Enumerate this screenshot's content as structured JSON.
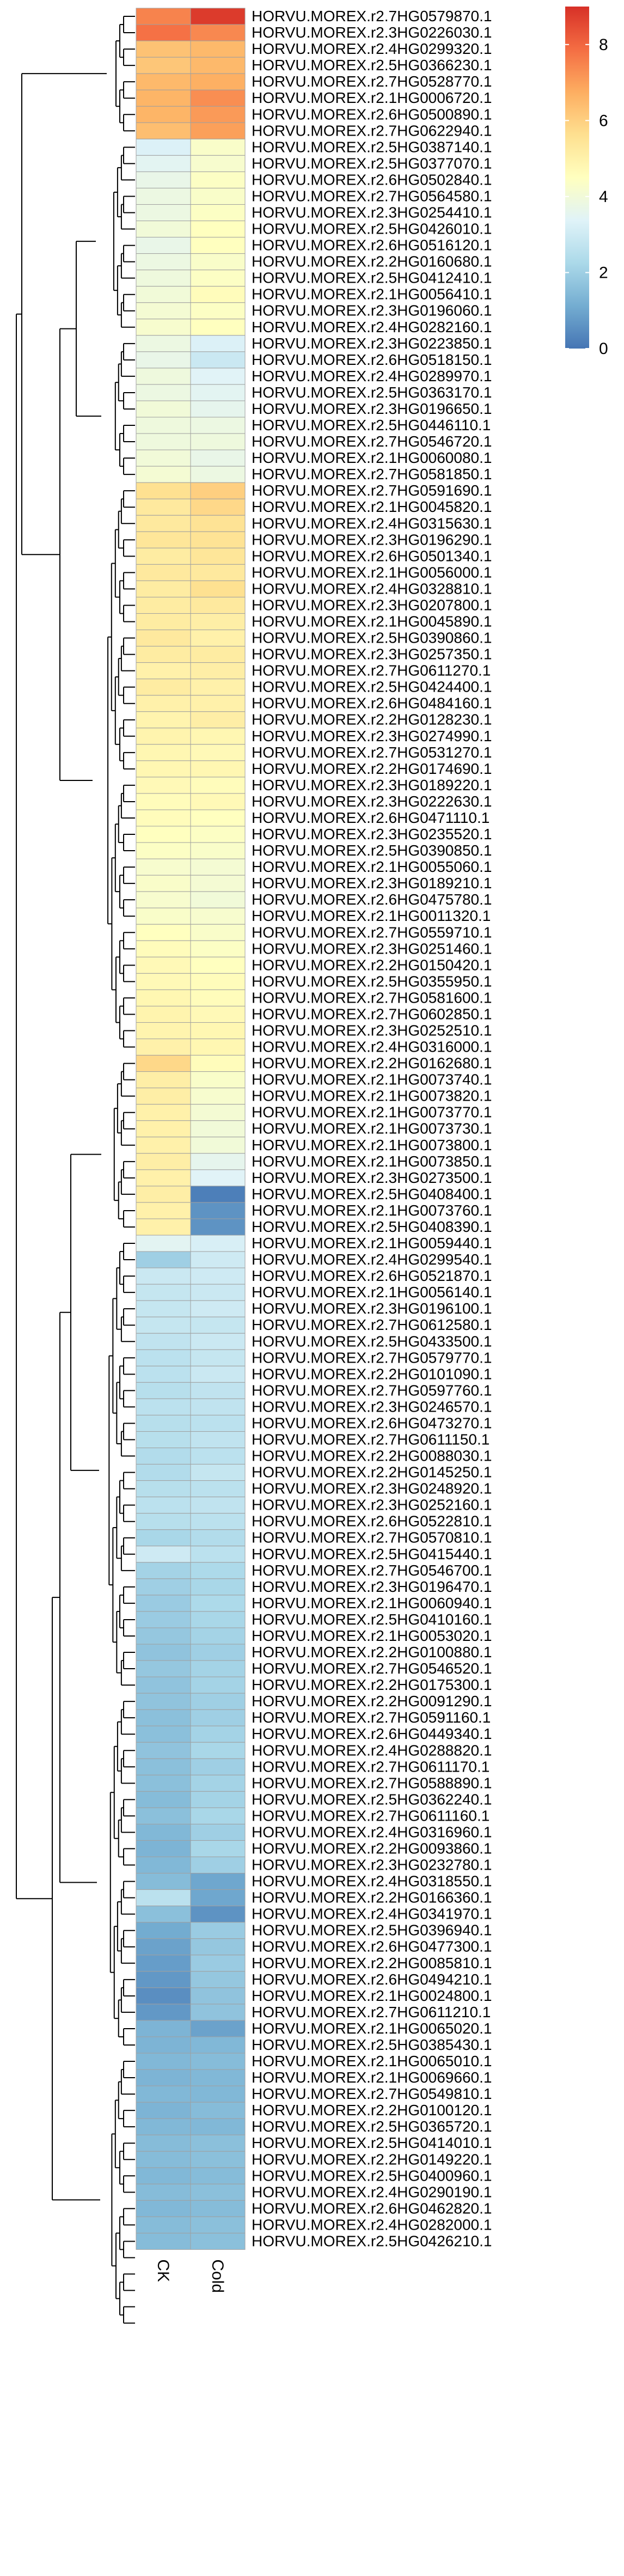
{
  "chart_data": {
    "type": "heatmap",
    "title": "",
    "columns": [
      "CK",
      "Cold"
    ],
    "color_scale": {
      "min": 0,
      "max": 9,
      "ticks": [
        0,
        2,
        4,
        6,
        8
      ],
      "colors": [
        "#4575b4",
        "#74add1",
        "#abd9e9",
        "#e0f3f8",
        "#ffffbf",
        "#fee090",
        "#fdae61",
        "#f46d43",
        "#d73027"
      ]
    },
    "rows": [
      {
        "gene": "HORVU.MOREX.r2.7HG0579870.1",
        "values": [
          7.5,
          8.8
        ]
      },
      {
        "gene": "HORVU.MOREX.r2.3HG0226030.1",
        "values": [
          7.8,
          7.4
        ]
      },
      {
        "gene": "HORVU.MOREX.r2.4HG0299320.1",
        "values": [
          6.3,
          6.5
        ]
      },
      {
        "gene": "HORVU.MOREX.r2.5HG0366230.1",
        "values": [
          6.2,
          6.5
        ]
      },
      {
        "gene": "HORVU.MOREX.r2.7HG0528770.1",
        "values": [
          6.5,
          6.7
        ]
      },
      {
        "gene": "HORVU.MOREX.r2.1HG0006720.1",
        "values": [
          6.6,
          7.3
        ]
      },
      {
        "gene": "HORVU.MOREX.r2.6HG0500890.1",
        "values": [
          6.6,
          7.1
        ]
      },
      {
        "gene": "HORVU.MOREX.r2.7HG0622940.1",
        "values": [
          6.4,
          7.0
        ]
      },
      {
        "gene": "HORVU.MOREX.r2.5HG0387140.1",
        "values": [
          3.3,
          4.3
        ]
      },
      {
        "gene": "HORVU.MOREX.r2.5HG0377070.1",
        "values": [
          3.5,
          4.2
        ]
      },
      {
        "gene": "HORVU.MOREX.r2.6HG0502840.1",
        "values": [
          3.7,
          4.4
        ]
      },
      {
        "gene": "HORVU.MOREX.r2.7HG0564580.1",
        "values": [
          3.8,
          4.3
        ]
      },
      {
        "gene": "HORVU.MOREX.r2.3HG0254410.1",
        "values": [
          3.8,
          4.4
        ]
      },
      {
        "gene": "HORVU.MOREX.r2.5HG0426010.1",
        "values": [
          4.0,
          4.5
        ]
      },
      {
        "gene": "HORVU.MOREX.r2.6HG0516120.1",
        "values": [
          3.7,
          4.5
        ]
      },
      {
        "gene": "HORVU.MOREX.r2.2HG0160680.1",
        "values": [
          3.8,
          4.3
        ]
      },
      {
        "gene": "HORVU.MOREX.r2.5HG0412410.1",
        "values": [
          3.9,
          4.4
        ]
      },
      {
        "gene": "HORVU.MOREX.r2.1HG0056410.1",
        "values": [
          4.0,
          4.6
        ]
      },
      {
        "gene": "HORVU.MOREX.r2.3HG0196060.1",
        "values": [
          4.1,
          4.4
        ]
      },
      {
        "gene": "HORVU.MOREX.r2.4HG0282160.1",
        "values": [
          4.2,
          4.5
        ]
      },
      {
        "gene": "HORVU.MOREX.r2.3HG0223850.1",
        "values": [
          3.8,
          3.3
        ]
      },
      {
        "gene": "HORVU.MOREX.r2.6HG0518150.1",
        "values": [
          3.7,
          2.9
        ]
      },
      {
        "gene": "HORVU.MOREX.r2.4HG0289970.1",
        "values": [
          3.9,
          3.4
        ]
      },
      {
        "gene": "HORVU.MOREX.r2.5HG0363170.1",
        "values": [
          3.8,
          3.5
        ]
      },
      {
        "gene": "HORVU.MOREX.r2.3HG0196650.1",
        "values": [
          4.0,
          3.6
        ]
      },
      {
        "gene": "HORVU.MOREX.r2.5HG0446110.1",
        "values": [
          3.9,
          3.8
        ]
      },
      {
        "gene": "HORVU.MOREX.r2.7HG0546720.1",
        "values": [
          3.9,
          3.9
        ]
      },
      {
        "gene": "HORVU.MOREX.r2.1HG0060080.1",
        "values": [
          4.0,
          3.7
        ]
      },
      {
        "gene": "HORVU.MOREX.r2.7HG0581850.1",
        "values": [
          4.1,
          3.8
        ]
      },
      {
        "gene": "HORVU.MOREX.r2.7HG0591690.1",
        "values": [
          5.6,
          6.0
        ]
      },
      {
        "gene": "HORVU.MOREX.r2.1HG0045820.1",
        "values": [
          5.3,
          5.8
        ]
      },
      {
        "gene": "HORVU.MOREX.r2.4HG0315630.1",
        "values": [
          5.3,
          5.5
        ]
      },
      {
        "gene": "HORVU.MOREX.r2.3HG0196290.1",
        "values": [
          5.4,
          5.5
        ]
      },
      {
        "gene": "HORVU.MOREX.r2.6HG0501340.1",
        "values": [
          5.2,
          5.4
        ]
      },
      {
        "gene": "HORVU.MOREX.r2.1HG0056000.1",
        "values": [
          5.3,
          5.3
        ]
      },
      {
        "gene": "HORVU.MOREX.r2.4HG0328810.1",
        "values": [
          5.2,
          5.6
        ]
      },
      {
        "gene": "HORVU.MOREX.r2.3HG0207800.1",
        "values": [
          5.2,
          5.3
        ]
      },
      {
        "gene": "HORVU.MOREX.r2.1HG0045890.1",
        "values": [
          5.2,
          5.1
        ]
      },
      {
        "gene": "HORVU.MOREX.r2.5HG0390860.1",
        "values": [
          5.3,
          5.0
        ]
      },
      {
        "gene": "HORVU.MOREX.r2.3HG0257350.1",
        "values": [
          5.2,
          5.2
        ]
      },
      {
        "gene": "HORVU.MOREX.r2.7HG0611270.1",
        "values": [
          5.0,
          5.1
        ]
      },
      {
        "gene": "HORVU.MOREX.r2.5HG0424400.1",
        "values": [
          5.2,
          5.0
        ]
      },
      {
        "gene": "HORVU.MOREX.r2.6HG0484160.1",
        "values": [
          5.0,
          5.0
        ]
      },
      {
        "gene": "HORVU.MOREX.r2.2HG0128230.1",
        "values": [
          4.9,
          5.1
        ]
      },
      {
        "gene": "HORVU.MOREX.r2.3HG0274990.1",
        "values": [
          4.9,
          4.8
        ]
      },
      {
        "gene": "HORVU.MOREX.r2.7HG0531270.1",
        "values": [
          4.8,
          4.7
        ]
      },
      {
        "gene": "HORVU.MOREX.r2.2HG0174690.1",
        "values": [
          4.8,
          4.8
        ]
      },
      {
        "gene": "HORVU.MOREX.r2.3HG0189220.1",
        "values": [
          4.7,
          4.6
        ]
      },
      {
        "gene": "HORVU.MOREX.r2.3HG0222630.1",
        "values": [
          4.6,
          4.7
        ]
      },
      {
        "gene": "HORVU.MOREX.r2.6HG0471110.1",
        "values": [
          4.6,
          4.5
        ]
      },
      {
        "gene": "HORVU.MOREX.r2.3HG0235520.1",
        "values": [
          4.5,
          4.4
        ]
      },
      {
        "gene": "HORVU.MOREX.r2.5HG0390850.1",
        "values": [
          4.4,
          4.3
        ]
      },
      {
        "gene": "HORVU.MOREX.r2.1HG0055060.1",
        "values": [
          4.2,
          4.1
        ]
      },
      {
        "gene": "HORVU.MOREX.r2.3HG0189210.1",
        "values": [
          4.3,
          4.1
        ]
      },
      {
        "gene": "HORVU.MOREX.r2.6HG0475780.1",
        "values": [
          4.2,
          4.0
        ]
      },
      {
        "gene": "HORVU.MOREX.r2.1HG0011320.1",
        "values": [
          4.3,
          4.2
        ]
      },
      {
        "gene": "HORVU.MOREX.r2.7HG0559710.1",
        "values": [
          4.5,
          4.3
        ]
      },
      {
        "gene": "HORVU.MOREX.r2.3HG0251460.1",
        "values": [
          4.6,
          4.4
        ]
      },
      {
        "gene": "HORVU.MOREX.r2.2HG0150420.1",
        "values": [
          4.7,
          4.5
        ]
      },
      {
        "gene": "HORVU.MOREX.r2.5HG0355950.1",
        "values": [
          4.7,
          4.6
        ]
      },
      {
        "gene": "HORVU.MOREX.r2.7HG0581600.1",
        "values": [
          4.8,
          4.6
        ]
      },
      {
        "gene": "HORVU.MOREX.r2.7HG0602850.1",
        "values": [
          4.9,
          4.7
        ]
      },
      {
        "gene": "HORVU.MOREX.r2.3HG0252510.1",
        "values": [
          4.9,
          4.8
        ]
      },
      {
        "gene": "HORVU.MOREX.r2.4HG0316000.1",
        "values": [
          5.0,
          4.8
        ]
      },
      {
        "gene": "HORVU.MOREX.r2.2HG0162680.1",
        "values": [
          5.8,
          4.6
        ]
      },
      {
        "gene": "HORVU.MOREX.r2.1HG0073740.1",
        "values": [
          5.1,
          4.3
        ]
      },
      {
        "gene": "HORVU.MOREX.r2.1HG0073820.1",
        "values": [
          5.1,
          4.2
        ]
      },
      {
        "gene": "HORVU.MOREX.r2.1HG0073770.1",
        "values": [
          5.0,
          4.1
        ]
      },
      {
        "gene": "HORVU.MOREX.r2.1HG0073730.1",
        "values": [
          5.0,
          4.0
        ]
      },
      {
        "gene": "HORVU.MOREX.r2.1HG0073800.1",
        "values": [
          5.0,
          4.0
        ]
      },
      {
        "gene": "HORVU.MOREX.r2.1HG0073850.1",
        "values": [
          5.1,
          3.6
        ]
      },
      {
        "gene": "HORVU.MOREX.r2.3HG0273500.1",
        "values": [
          5.0,
          3.4
        ]
      },
      {
        "gene": "HORVU.MOREX.r2.5HG0408400.1",
        "values": [
          5.1,
          0.2
        ]
      },
      {
        "gene": "HORVU.MOREX.r2.1HG0073760.1",
        "values": [
          5.0,
          0.6
        ]
      },
      {
        "gene": "HORVU.MOREX.r2.5HG0408390.1",
        "values": [
          5.0,
          0.6
        ]
      },
      {
        "gene": "HORVU.MOREX.r2.1HG0059440.1",
        "values": [
          3.5,
          3.2
        ]
      },
      {
        "gene": "HORVU.MOREX.r2.4HG0299540.1",
        "values": [
          2.0,
          3.0
        ]
      },
      {
        "gene": "HORVU.MOREX.r2.6HG0521870.1",
        "values": [
          2.9,
          3.0
        ]
      },
      {
        "gene": "HORVU.MOREX.r2.1HG0056140.1",
        "values": [
          2.8,
          2.9
        ]
      },
      {
        "gene": "HORVU.MOREX.r2.3HG0196100.1",
        "values": [
          2.8,
          3.0
        ]
      },
      {
        "gene": "HORVU.MOREX.r2.7HG0612580.1",
        "values": [
          2.8,
          2.8
        ]
      },
      {
        "gene": "HORVU.MOREX.r2.5HG0433500.1",
        "values": [
          2.7,
          2.9
        ]
      },
      {
        "gene": "HORVU.MOREX.r2.7HG0579770.1",
        "values": [
          2.6,
          2.8
        ]
      },
      {
        "gene": "HORVU.MOREX.r2.2HG0101090.1",
        "values": [
          2.6,
          2.9
        ]
      },
      {
        "gene": "HORVU.MOREX.r2.7HG0597760.1",
        "values": [
          2.5,
          2.7
        ]
      },
      {
        "gene": "HORVU.MOREX.r2.3HG0246570.1",
        "values": [
          2.6,
          2.7
        ]
      },
      {
        "gene": "HORVU.MOREX.r2.6HG0473270.1",
        "values": [
          2.5,
          2.6
        ]
      },
      {
        "gene": "HORVU.MOREX.r2.7HG0611150.1",
        "values": [
          2.5,
          2.7
        ]
      },
      {
        "gene": "HORVU.MOREX.r2.2HG0088030.1",
        "values": [
          2.4,
          2.6
        ]
      },
      {
        "gene": "HORVU.MOREX.r2.2HG0145250.1",
        "values": [
          2.4,
          2.8
        ]
      },
      {
        "gene": "HORVU.MOREX.r2.3HG0248920.1",
        "values": [
          2.5,
          2.6
        ]
      },
      {
        "gene": "HORVU.MOREX.r2.3HG0252160.1",
        "values": [
          2.6,
          2.7
        ]
      },
      {
        "gene": "HORVU.MOREX.r2.6HG0522810.1",
        "values": [
          2.5,
          2.6
        ]
      },
      {
        "gene": "HORVU.MOREX.r2.7HG0570810.1",
        "values": [
          2.2,
          2.4
        ]
      },
      {
        "gene": "HORVU.MOREX.r2.5HG0415440.1",
        "values": [
          3.0,
          2.6
        ]
      },
      {
        "gene": "HORVU.MOREX.r2.7HG0546700.1",
        "values": [
          2.1,
          2.3
        ]
      },
      {
        "gene": "HORVU.MOREX.r2.3HG0196470.1",
        "values": [
          2.0,
          2.2
        ]
      },
      {
        "gene": "HORVU.MOREX.r2.1HG0060940.1",
        "values": [
          1.9,
          2.3
        ]
      },
      {
        "gene": "HORVU.MOREX.r2.5HG0410160.1",
        "values": [
          1.9,
          2.2
        ]
      },
      {
        "gene": "HORVU.MOREX.r2.1HG0053020.1",
        "values": [
          1.8,
          2.1
        ]
      },
      {
        "gene": "HORVU.MOREX.r2.2HG0100880.1",
        "values": [
          1.7,
          2.0
        ]
      },
      {
        "gene": "HORVU.MOREX.r2.7HG0546520.1",
        "values": [
          1.8,
          2.1
        ]
      },
      {
        "gene": "HORVU.MOREX.r2.2HG0175300.1",
        "values": [
          1.7,
          2.1
        ]
      },
      {
        "gene": "HORVU.MOREX.r2.2HG0091290.1",
        "values": [
          1.7,
          2.0
        ]
      },
      {
        "gene": "HORVU.MOREX.r2.7HG0591160.1",
        "values": [
          1.6,
          2.0
        ]
      },
      {
        "gene": "HORVU.MOREX.r2.6HG0449340.1",
        "values": [
          1.6,
          2.1
        ]
      },
      {
        "gene": "HORVU.MOREX.r2.4HG0288820.1",
        "values": [
          1.7,
          2.2
        ]
      },
      {
        "gene": "HORVU.MOREX.r2.7HG0611170.1",
        "values": [
          1.6,
          2.0
        ]
      },
      {
        "gene": "HORVU.MOREX.r2.7HG0588890.1",
        "values": [
          1.6,
          2.1
        ]
      },
      {
        "gene": "HORVU.MOREX.r2.5HG0362240.1",
        "values": [
          1.5,
          2.1
        ]
      },
      {
        "gene": "HORVU.MOREX.r2.7HG0611160.1",
        "values": [
          1.6,
          2.2
        ]
      },
      {
        "gene": "HORVU.MOREX.r2.4HG0316960.1",
        "values": [
          1.4,
          2.0
        ]
      },
      {
        "gene": "HORVU.MOREX.r2.2HG0093860.1",
        "values": [
          1.3,
          2.2
        ]
      },
      {
        "gene": "HORVU.MOREX.r2.3HG0232780.1",
        "values": [
          1.4,
          2.0
        ]
      },
      {
        "gene": "HORVU.MOREX.r2.4HG0318550.1",
        "values": [
          1.5,
          1.0
        ]
      },
      {
        "gene": "HORVU.MOREX.r2.2HG0166360.1",
        "values": [
          2.6,
          1.0
        ]
      },
      {
        "gene": "HORVU.MOREX.r2.4HG0341970.1",
        "values": [
          1.6,
          0.6
        ]
      },
      {
        "gene": "HORVU.MOREX.r2.5HG0396940.1",
        "values": [
          1.1,
          1.9
        ]
      },
      {
        "gene": "HORVU.MOREX.r2.6HG0477300.1",
        "values": [
          0.9,
          1.8
        ]
      },
      {
        "gene": "HORVU.MOREX.r2.2HG0085810.1",
        "values": [
          0.8,
          1.9
        ]
      },
      {
        "gene": "HORVU.MOREX.r2.6HG0494210.1",
        "values": [
          0.7,
          1.8
        ]
      },
      {
        "gene": "HORVU.MOREX.r2.1HG0024800.1",
        "values": [
          0.5,
          1.7
        ]
      },
      {
        "gene": "HORVU.MOREX.r2.7HG0611210.1",
        "values": [
          0.7,
          1.7
        ]
      },
      {
        "gene": "HORVU.MOREX.r2.1HG0065020.1",
        "values": [
          1.3,
          0.9
        ]
      },
      {
        "gene": "HORVU.MOREX.r2.5HG0385430.1",
        "values": [
          1.3,
          1.4
        ]
      },
      {
        "gene": "HORVU.MOREX.r2.1HG0065010.1",
        "values": [
          1.4,
          1.5
        ]
      },
      {
        "gene": "HORVU.MOREX.r2.1HG0069660.1",
        "values": [
          1.3,
          1.4
        ]
      },
      {
        "gene": "HORVU.MOREX.r2.7HG0549810.1",
        "values": [
          1.4,
          1.4
        ]
      },
      {
        "gene": "HORVU.MOREX.r2.2HG0100120.1",
        "values": [
          1.3,
          1.5
        ]
      },
      {
        "gene": "HORVU.MOREX.r2.5HG0365720.1",
        "values": [
          1.4,
          1.4
        ]
      },
      {
        "gene": "HORVU.MOREX.r2.5HG0414010.1",
        "values": [
          1.5,
          1.6
        ]
      },
      {
        "gene": "HORVU.MOREX.r2.2HG0149220.1",
        "values": [
          1.5,
          1.6
        ]
      },
      {
        "gene": "HORVU.MOREX.r2.5HG0400960.1",
        "values": [
          1.4,
          1.5
        ]
      },
      {
        "gene": "HORVU.MOREX.r2.4HG0290190.1",
        "values": [
          1.5,
          1.6
        ]
      },
      {
        "gene": "HORVU.MOREX.r2.6HG0462820.1",
        "values": [
          1.4,
          1.5
        ]
      },
      {
        "gene": "HORVU.MOREX.r2.4HG0282000.1",
        "values": [
          1.5,
          1.6
        ]
      },
      {
        "gene": "HORVU.MOREX.r2.5HG0426210.1",
        "values": [
          1.5,
          1.6
        ]
      }
    ]
  }
}
